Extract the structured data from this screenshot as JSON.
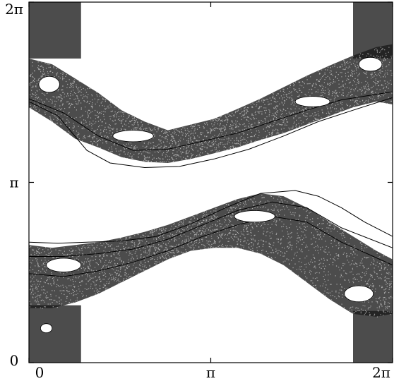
{
  "chart_data": {
    "type": "scatter",
    "title": "",
    "xlabel": "",
    "ylabel": "",
    "xlim": [
      0,
      6.283185307
    ],
    "ylim": [
      0,
      6.283185307
    ],
    "grid": false,
    "x_ticks": [
      {
        "value": 0,
        "label": "0"
      },
      {
        "value": 3.141592654,
        "label": "π"
      },
      {
        "value": 6.283185307,
        "label": "2π"
      }
    ],
    "y_ticks": [
      {
        "value": 0,
        "label": "0"
      },
      {
        "value": 3.141592654,
        "label": "π"
      },
      {
        "value": 6.283185307,
        "label": "2π"
      }
    ],
    "point_color": "#000000",
    "bands": [
      {
        "name": "upper-chaotic-band",
        "top": [
          [
            0.0,
            5.3
          ],
          [
            0.4,
            5.2
          ],
          [
            0.8,
            4.95
          ],
          [
            1.2,
            4.7
          ],
          [
            1.6,
            4.4
          ],
          [
            2.0,
            4.2
          ],
          [
            2.4,
            4.05
          ],
          [
            2.8,
            4.15
          ],
          [
            3.2,
            4.25
          ],
          [
            3.6,
            4.42
          ],
          [
            4.0,
            4.6
          ],
          [
            4.4,
            4.8
          ],
          [
            4.8,
            5.0
          ],
          [
            5.2,
            5.18
          ],
          [
            5.6,
            5.35
          ],
          [
            6.0,
            5.5
          ],
          [
            6.283,
            5.55
          ]
        ],
        "bottom": [
          [
            0.0,
            4.45
          ],
          [
            0.4,
            4.2
          ],
          [
            0.8,
            3.9
          ],
          [
            1.2,
            3.75
          ],
          [
            1.6,
            3.58
          ],
          [
            2.0,
            3.5
          ],
          [
            2.4,
            3.48
          ],
          [
            2.8,
            3.55
          ],
          [
            3.2,
            3.65
          ],
          [
            3.6,
            3.75
          ],
          [
            4.0,
            3.88
          ],
          [
            4.4,
            4.0
          ],
          [
            4.8,
            4.15
          ],
          [
            5.2,
            4.3
          ],
          [
            5.6,
            4.45
          ],
          [
            6.0,
            4.55
          ],
          [
            6.283,
            4.5
          ]
        ]
      },
      {
        "name": "lower-chaotic-band",
        "top": [
          [
            0.0,
            2.05
          ],
          [
            0.4,
            2.0
          ],
          [
            0.8,
            2.05
          ],
          [
            1.2,
            2.1
          ],
          [
            1.6,
            2.18
          ],
          [
            2.0,
            2.28
          ],
          [
            2.4,
            2.4
          ],
          [
            2.8,
            2.55
          ],
          [
            3.2,
            2.7
          ],
          [
            3.6,
            2.85
          ],
          [
            4.0,
            2.95
          ],
          [
            4.4,
            2.9
          ],
          [
            4.8,
            2.7
          ],
          [
            5.2,
            2.45
          ],
          [
            5.6,
            2.2
          ],
          [
            6.0,
            1.95
          ],
          [
            6.283,
            1.8
          ]
        ],
        "bottom": [
          [
            0.0,
            0.95
          ],
          [
            0.4,
            0.95
          ],
          [
            0.8,
            1.05
          ],
          [
            1.2,
            1.2
          ],
          [
            1.6,
            1.4
          ],
          [
            2.0,
            1.6
          ],
          [
            2.4,
            1.8
          ],
          [
            2.8,
            1.95
          ],
          [
            3.2,
            2.0
          ],
          [
            3.6,
            2.0
          ],
          [
            4.0,
            1.9
          ],
          [
            4.4,
            1.7
          ],
          [
            4.8,
            1.4
          ],
          [
            5.2,
            1.1
          ],
          [
            5.6,
            0.85
          ],
          [
            6.0,
            0.8
          ],
          [
            6.283,
            0.85
          ]
        ]
      }
    ],
    "corner_regions": [
      {
        "name": "top-left-corner",
        "x": [
          0.0,
          0.9
        ],
        "y": [
          5.3,
          6.283
        ]
      },
      {
        "name": "top-right-corner",
        "x": [
          5.6,
          6.283
        ],
        "y": [
          5.3,
          6.283
        ]
      },
      {
        "name": "bottom-left-corner",
        "x": [
          0.0,
          0.9
        ],
        "y": [
          0.0,
          1.0
        ]
      },
      {
        "name": "bottom-right-corner",
        "x": [
          5.6,
          6.283
        ],
        "y": [
          0.0,
          0.9
        ]
      }
    ],
    "invariant_curves": [
      {
        "name": "upper-outer-curve",
        "points": [
          [
            0.0,
            4.55
          ],
          [
            0.5,
            4.3
          ],
          [
            1.0,
            3.7
          ],
          [
            1.4,
            3.48
          ],
          [
            2.0,
            3.4
          ],
          [
            2.6,
            3.42
          ],
          [
            3.2,
            3.55
          ],
          [
            3.8,
            3.72
          ],
          [
            4.4,
            3.95
          ],
          [
            5.0,
            4.2
          ],
          [
            5.6,
            4.4
          ],
          [
            6.283,
            4.62
          ]
        ]
      },
      {
        "name": "upper-inner-curve",
        "points": [
          [
            0.0,
            4.6
          ],
          [
            0.6,
            4.35
          ],
          [
            1.2,
            3.95
          ],
          [
            1.8,
            3.7
          ],
          [
            2.4,
            3.72
          ],
          [
            3.0,
            3.86
          ],
          [
            3.6,
            4.0
          ],
          [
            4.2,
            4.2
          ],
          [
            4.8,
            4.4
          ],
          [
            5.4,
            4.58
          ],
          [
            6.283,
            4.72
          ]
        ]
      },
      {
        "name": "lower-outer-curve",
        "points": [
          [
            0.0,
            2.1
          ],
          [
            0.5,
            2.08
          ],
          [
            1.0,
            2.1
          ],
          [
            1.6,
            2.12
          ],
          [
            2.2,
            2.2
          ],
          [
            2.8,
            2.42
          ],
          [
            3.4,
            2.7
          ],
          [
            4.0,
            2.95
          ],
          [
            4.6,
            3.0
          ],
          [
            5.0,
            2.9
          ],
          [
            5.4,
            2.7
          ],
          [
            5.8,
            2.45
          ],
          [
            6.283,
            2.2
          ]
        ]
      },
      {
        "name": "lower-inner-curve",
        "points": [
          [
            0.0,
            1.85
          ],
          [
            0.6,
            1.85
          ],
          [
            1.2,
            1.9
          ],
          [
            1.8,
            1.98
          ],
          [
            2.4,
            2.15
          ],
          [
            3.0,
            2.4
          ],
          [
            3.6,
            2.65
          ],
          [
            4.2,
            2.8
          ],
          [
            4.8,
            2.7
          ],
          [
            5.4,
            2.35
          ],
          [
            6.283,
            2.0
          ]
        ]
      },
      {
        "name": "lower-mid-curve",
        "points": [
          [
            0.0,
            1.55
          ],
          [
            0.6,
            1.5
          ],
          [
            1.2,
            1.6
          ],
          [
            1.8,
            1.75
          ],
          [
            2.4,
            1.95
          ],
          [
            3.0,
            2.2
          ],
          [
            3.6,
            2.4
          ],
          [
            4.2,
            2.55
          ],
          [
            4.8,
            2.45
          ],
          [
            5.4,
            2.1
          ],
          [
            6.283,
            1.7
          ]
        ]
      }
    ],
    "islands": [
      {
        "name": "island-upper-1",
        "cx": 1.8,
        "cy": 3.95,
        "rx": 0.35,
        "ry": 0.1
      },
      {
        "name": "island-upper-2",
        "cx": 4.9,
        "cy": 4.55,
        "rx": 0.3,
        "ry": 0.09
      },
      {
        "name": "island-upper-3",
        "cx": 0.35,
        "cy": 4.85,
        "rx": 0.18,
        "ry": 0.14
      },
      {
        "name": "island-upper-4",
        "cx": 5.9,
        "cy": 5.2,
        "rx": 0.2,
        "ry": 0.12
      },
      {
        "name": "island-lower-1",
        "cx": 0.6,
        "cy": 1.7,
        "rx": 0.3,
        "ry": 0.12
      },
      {
        "name": "island-lower-2",
        "cx": 3.9,
        "cy": 2.55,
        "rx": 0.35,
        "ry": 0.1
      },
      {
        "name": "island-lower-3",
        "cx": 5.7,
        "cy": 1.2,
        "rx": 0.25,
        "ry": 0.14
      },
      {
        "name": "island-lower-4",
        "cx": 0.3,
        "cy": 0.6,
        "rx": 0.1,
        "ry": 0.08
      }
    ]
  }
}
